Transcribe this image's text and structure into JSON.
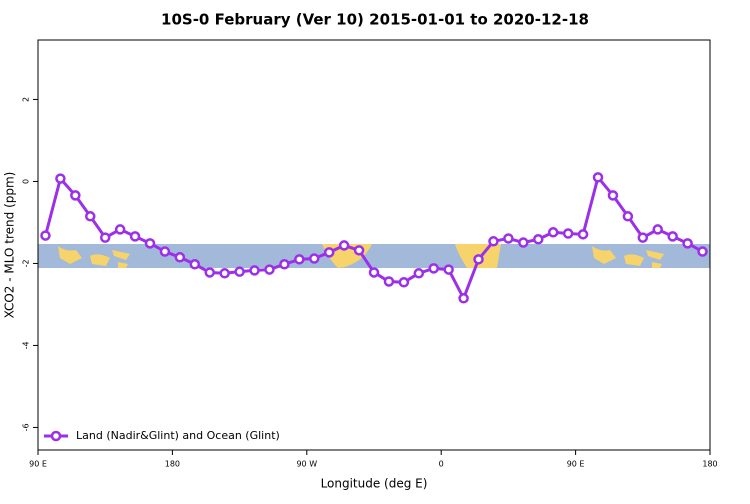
{
  "chart_data": {
    "type": "line",
    "title": "10S-0 February (Ver 10)   2015-01-01 to 2020-12-18",
    "x_label": "Longitude (deg E)",
    "y_label": "XCO2 - MLO trend (ppm)",
    "x": [
      95,
      105,
      115,
      125,
      135,
      145,
      155,
      165,
      175,
      185,
      195,
      205,
      215,
      225,
      235,
      245,
      255,
      265,
      275,
      285,
      295,
      305,
      315,
      325,
      335,
      345,
      355,
      365,
      375,
      385,
      395,
      405,
      415,
      425,
      435,
      445,
      455,
      465,
      475,
      485,
      495,
      505,
      515,
      525,
      535
    ],
    "series": [
      {
        "name": "Land (Nadir&Glint) and Ocean (Glint)",
        "color": "#9b30e8",
        "values": [
          -1.32,
          0.07,
          -0.34,
          -0.85,
          -1.37,
          -1.17,
          -1.34,
          -1.51,
          -1.71,
          -1.85,
          -2.02,
          -2.22,
          -2.24,
          -2.2,
          -2.17,
          -2.15,
          -2.02,
          -1.9,
          -1.88,
          -1.73,
          -1.56,
          -1.68,
          -2.22,
          -2.44,
          -2.46,
          -2.24,
          -2.12,
          -2.15,
          -2.85,
          -1.9,
          -1.46,
          -1.39,
          -1.49,
          -1.41,
          -1.24,
          -1.27,
          -1.29,
          0.1,
          -0.34,
          -0.85,
          -1.37,
          -1.17,
          -1.34,
          -1.51,
          -1.71
        ]
      }
    ],
    "xlim": [
      90,
      540
    ],
    "xticks": [
      {
        "value": 90,
        "label": "90 E"
      },
      {
        "value": 180,
        "label": "180"
      },
      {
        "value": 270,
        "label": "90 W"
      },
      {
        "value": 360,
        "label": "0"
      },
      {
        "value": 450,
        "label": "90 E"
      },
      {
        "value": 540,
        "label": "180"
      }
    ],
    "ylim": [
      -6.55,
      3.45
    ],
    "yticks": [
      -6,
      -4,
      -2,
      0,
      2
    ],
    "legend": "bottom-left"
  }
}
